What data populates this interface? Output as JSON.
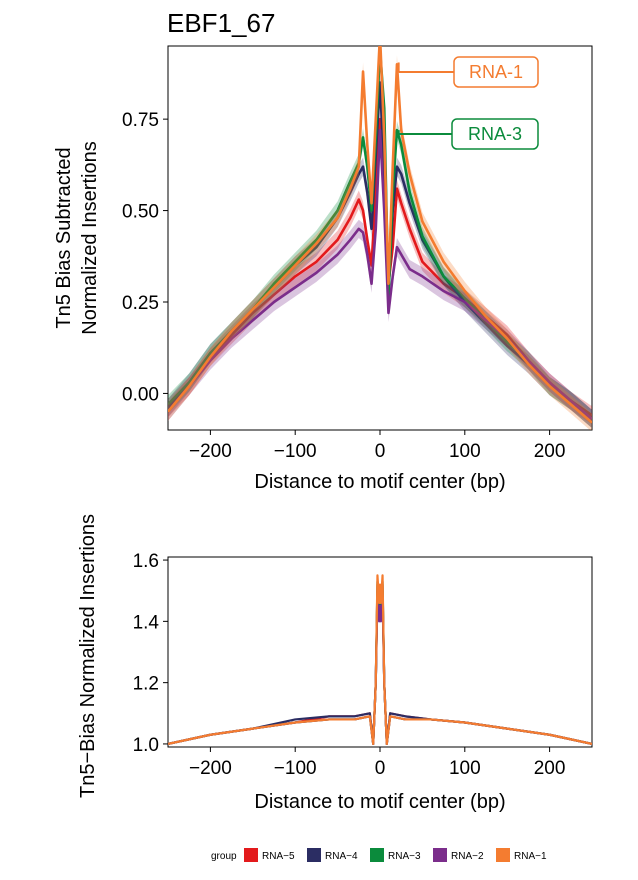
{
  "chart_data": [
    {
      "type": "line",
      "title": "EBF1_67",
      "xlabel": "Distance to motif center (bp)",
      "ylabel": "Tn5 Bias Subtracted\nNormalized Insertions",
      "xlim": [
        -250,
        250
      ],
      "ylim": [
        -0.1,
        0.95
      ],
      "xticks": [
        -200,
        -100,
        0,
        100,
        200
      ],
      "xtick_labels": [
        "−200",
        "−100",
        "0",
        "100",
        "200"
      ],
      "yticks": [
        0.0,
        0.25,
        0.5,
        0.75
      ],
      "ytick_labels": [
        "0.00",
        "0.25",
        "0.50",
        "0.75"
      ],
      "grid": false,
      "x": [
        -250,
        -225,
        -200,
        -175,
        -150,
        -125,
        -100,
        -75,
        -50,
        -35,
        -25,
        -20,
        -15,
        -10,
        -5,
        0,
        5,
        10,
        15,
        20,
        25,
        35,
        50,
        75,
        100,
        125,
        150,
        175,
        200,
        225,
        250
      ],
      "series": [
        {
          "name": "RNA-5",
          "color": "#E31A1C",
          "values": [
            -0.04,
            0.02,
            0.1,
            0.16,
            0.22,
            0.27,
            0.32,
            0.36,
            0.42,
            0.48,
            0.53,
            0.5,
            0.42,
            0.35,
            0.55,
            0.75,
            0.55,
            0.3,
            0.4,
            0.56,
            0.52,
            0.45,
            0.36,
            0.3,
            0.26,
            0.21,
            0.16,
            0.09,
            0.03,
            -0.02,
            -0.06
          ]
        },
        {
          "name": "RNA-4",
          "color": "#2B2D63",
          "values": [
            -0.04,
            0.03,
            0.11,
            0.17,
            0.23,
            0.29,
            0.35,
            0.4,
            0.48,
            0.55,
            0.6,
            0.62,
            0.55,
            0.45,
            0.65,
            0.85,
            0.6,
            0.28,
            0.5,
            0.62,
            0.6,
            0.52,
            0.42,
            0.32,
            0.25,
            0.19,
            0.13,
            0.08,
            0.02,
            -0.02,
            -0.07
          ]
        },
        {
          "name": "RNA-3",
          "color": "#0B8B3C",
          "values": [
            -0.03,
            0.03,
            0.11,
            0.17,
            0.23,
            0.3,
            0.36,
            0.42,
            0.5,
            0.58,
            0.63,
            0.7,
            0.62,
            0.5,
            0.7,
            0.94,
            0.78,
            0.26,
            0.55,
            0.72,
            0.68,
            0.55,
            0.43,
            0.32,
            0.26,
            0.2,
            0.14,
            0.09,
            0.02,
            -0.02,
            -0.07
          ]
        },
        {
          "name": "RNA-2",
          "color": "#7B2D8B",
          "values": [
            -0.05,
            0.02,
            0.09,
            0.15,
            0.2,
            0.25,
            0.29,
            0.33,
            0.38,
            0.42,
            0.45,
            0.44,
            0.38,
            0.3,
            0.45,
            0.72,
            0.5,
            0.22,
            0.32,
            0.4,
            0.38,
            0.34,
            0.32,
            0.28,
            0.25,
            0.2,
            0.15,
            0.09,
            0.03,
            -0.02,
            -0.07
          ]
        },
        {
          "name": "RNA-1",
          "color": "#F47C30",
          "values": [
            -0.05,
            0.02,
            0.1,
            0.17,
            0.23,
            0.29,
            0.35,
            0.41,
            0.48,
            0.56,
            0.62,
            0.88,
            0.68,
            0.52,
            0.75,
            0.98,
            0.7,
            0.3,
            0.62,
            0.9,
            0.72,
            0.6,
            0.47,
            0.36,
            0.28,
            0.21,
            0.15,
            0.08,
            0.02,
            -0.03,
            -0.08
          ]
        }
      ],
      "annotations": [
        {
          "label": "RNA-1",
          "color": "#F47C30"
        },
        {
          "label": "RNA-3",
          "color": "#0B8B3C"
        }
      ]
    },
    {
      "type": "line",
      "title": "",
      "xlabel": "Distance to motif center (bp)",
      "ylabel": "Tn5−Bias Normalized Insertions",
      "xlim": [
        -250,
        250
      ],
      "ylim": [
        0.99,
        1.61
      ],
      "xticks": [
        -200,
        -100,
        0,
        100,
        200
      ],
      "xtick_labels": [
        "−200",
        "−100",
        "0",
        "100",
        "200"
      ],
      "yticks": [
        1.0,
        1.2,
        1.4,
        1.6
      ],
      "ytick_labels": [
        "1.0",
        "1.2",
        "1.4",
        "1.6"
      ],
      "grid": false,
      "x": [
        -250,
        -200,
        -150,
        -100,
        -60,
        -30,
        -12,
        -8,
        -5,
        -3,
        -1,
        0,
        1,
        3,
        5,
        8,
        12,
        30,
        60,
        100,
        150,
        200,
        250
      ],
      "series": [
        {
          "name": "RNA-5",
          "color": "#E31A1C",
          "values": [
            1.0,
            1.03,
            1.05,
            1.07,
            1.09,
            1.09,
            1.1,
            1.0,
            1.2,
            1.52,
            1.45,
            1.5,
            1.45,
            1.52,
            1.2,
            1.0,
            1.1,
            1.09,
            1.08,
            1.07,
            1.05,
            1.03,
            1.0
          ]
        },
        {
          "name": "RNA-4",
          "color": "#2B2D63",
          "values": [
            1.0,
            1.03,
            1.05,
            1.08,
            1.09,
            1.09,
            1.1,
            1.0,
            1.2,
            1.5,
            1.42,
            1.47,
            1.42,
            1.5,
            1.2,
            1.0,
            1.1,
            1.09,
            1.08,
            1.07,
            1.05,
            1.03,
            1.0
          ]
        },
        {
          "name": "RNA-3",
          "color": "#0B8B3C",
          "values": [
            1.0,
            1.03,
            1.05,
            1.07,
            1.08,
            1.08,
            1.09,
            1.0,
            1.2,
            1.53,
            1.44,
            1.49,
            1.44,
            1.53,
            1.2,
            1.0,
            1.09,
            1.08,
            1.08,
            1.07,
            1.05,
            1.03,
            1.0
          ]
        },
        {
          "name": "RNA-2",
          "color": "#7B2D8B",
          "values": [
            1.0,
            1.03,
            1.05,
            1.07,
            1.08,
            1.08,
            1.09,
            1.0,
            1.2,
            1.48,
            1.4,
            1.45,
            1.4,
            1.48,
            1.2,
            1.0,
            1.09,
            1.08,
            1.08,
            1.07,
            1.05,
            1.03,
            1.0
          ]
        },
        {
          "name": "RNA-1",
          "color": "#F47C30",
          "values": [
            1.0,
            1.03,
            1.05,
            1.07,
            1.08,
            1.08,
            1.09,
            1.0,
            1.2,
            1.55,
            1.46,
            1.52,
            1.46,
            1.55,
            1.2,
            1.0,
            1.09,
            1.08,
            1.08,
            1.07,
            1.05,
            1.03,
            1.0
          ]
        }
      ]
    }
  ],
  "legend": {
    "title": "group",
    "items": [
      {
        "label": "RNA−5",
        "color": "#E31A1C"
      },
      {
        "label": "RNA−4",
        "color": "#2B2D63"
      },
      {
        "label": "RNA−3",
        "color": "#0B8B3C"
      },
      {
        "label": "RNA−2",
        "color": "#7B2D8B"
      },
      {
        "label": "RNA−1",
        "color": "#F47C30"
      }
    ]
  }
}
